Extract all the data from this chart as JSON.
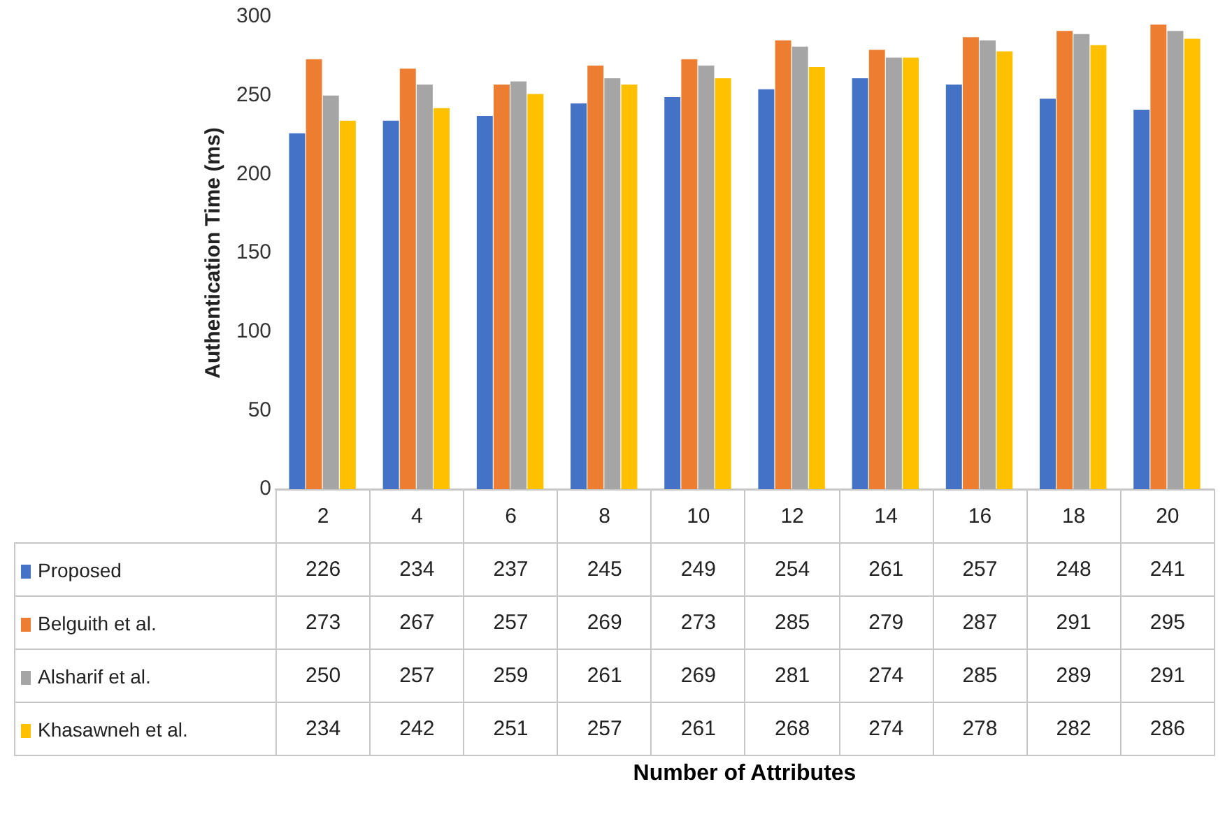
{
  "chart_data": {
    "type": "bar",
    "annotations": [
      "Number of Attributes"
    ],
    "ylabel": "Authentication Time (ms)",
    "categories": [
      "2",
      "4",
      "6",
      "8",
      "10",
      "12",
      "14",
      "16",
      "18",
      "20"
    ],
    "series": [
      {
        "name": "Proposed",
        "color": "#4472c4",
        "values": [
          226,
          234,
          237,
          245,
          249,
          254,
          261,
          257,
          248,
          241
        ]
      },
      {
        "name": "Belguith et al.",
        "color": "#ed7d31",
        "values": [
          273,
          267,
          257,
          269,
          273,
          285,
          279,
          287,
          291,
          295
        ]
      },
      {
        "name": "Alsharif et al.",
        "color": "#a5a5a5",
        "values": [
          250,
          257,
          259,
          261,
          269,
          281,
          274,
          285,
          289,
          291
        ]
      },
      {
        "name": "Khasawneh et al.",
        "color": "#ffc000",
        "values": [
          234,
          242,
          251,
          257,
          261,
          268,
          274,
          278,
          282,
          286
        ]
      }
    ],
    "ylim": [
      0,
      300
    ],
    "yticks": [
      0,
      50,
      100,
      150,
      200,
      250,
      300
    ],
    "data_labels": true,
    "legend": "bottom",
    "grid": false
  }
}
